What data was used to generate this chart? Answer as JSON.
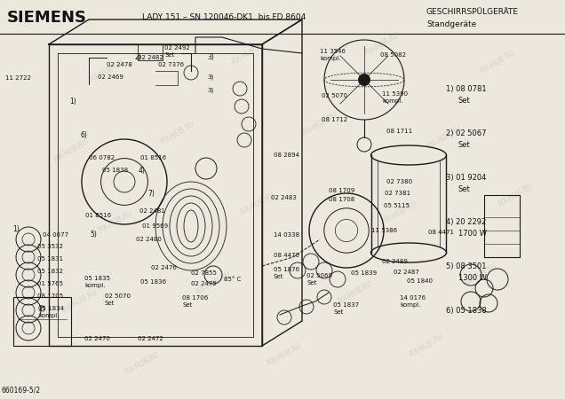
{
  "title": "SIEMENS",
  "subtitle": "LADY 151 – SN 120046-DK1  bis FD 8604",
  "top_right_line1": "GESCHIRRSPÜLGERÄTE",
  "top_right_line2": "Standgeräte",
  "bottom_left": "660169-5/2",
  "watermark": "FIX-HUB.RU",
  "bg_color": "#ede8de",
  "line_color": "#1a1a1a",
  "text_color": "#111111",
  "legend_items": [
    {
      "num": "1)",
      "code": "08 0781",
      "sub": "Set"
    },
    {
      "num": "2)",
      "code": "02 5067",
      "sub": "Set"
    },
    {
      "num": "3)",
      "code": "01 9204",
      "sub": "Set"
    },
    {
      "num": "4)",
      "code": "20 2292",
      "sub": "1700 W"
    },
    {
      "num": "5)",
      "code": "08 3501",
      "sub": "1300 W"
    },
    {
      "num": "6)",
      "code": "05 1838",
      "sub": ""
    }
  ]
}
